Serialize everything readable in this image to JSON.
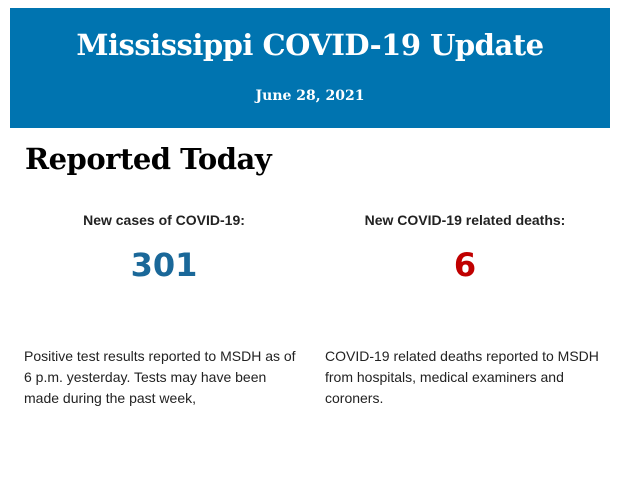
{
  "header": {
    "title": "Mississippi COVID-19 Update",
    "date": "June 28, 2021"
  },
  "section_title": "Reported Today",
  "cases": {
    "label": "New cases of COVID-19:",
    "value": "301",
    "color": "#1a6899",
    "description": "Positive test results reported to MSDH as of 6 p.m. yesterday. Tests may have been made during the past week,"
  },
  "deaths": {
    "label": "New COVID-19 related deaths:",
    "value": "6",
    "color": "#c00000",
    "description": "COVID-19 related deaths reported to MSDH from hospitals, medical examiners and coroners."
  }
}
